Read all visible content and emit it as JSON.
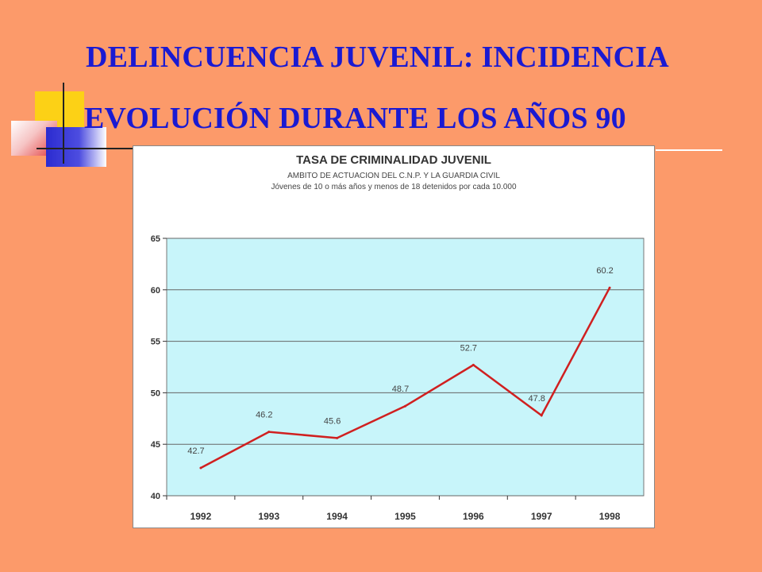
{
  "slide": {
    "title_line_1": "DELINCUENCIA JUVENIL: INCIDENCIA",
    "title_line_2": "EVOLUCIÓN DURANTE LOS AÑOS 90"
  },
  "colors": {
    "background": "#FC9A6A",
    "title": "#1a1ad2",
    "plot_area": "#C8F5FA",
    "line": "#D02020"
  },
  "chart_data": {
    "type": "line",
    "title": "TASA  DE CRIMINALIDAD JUVENIL",
    "subtitle_1": "AMBITO DE ACTUACION DEL C.N.P. Y LA GUARDIA CIVIL",
    "subtitle_2": "Jóvenes de 10 o más años y menos de 18 detenidos por cada 10.000",
    "categories": [
      "1992",
      "1993",
      "1994",
      "1995",
      "1996",
      "1997",
      "1998"
    ],
    "series": [
      {
        "values": [
          42.7,
          46.2,
          45.6,
          48.7,
          52.7,
          47.8,
          60.2
        ]
      }
    ],
    "data_labels": [
      "42.7",
      "46.2",
      "45.6",
      "48.7",
      "52.7",
      "47.8",
      "60.2"
    ],
    "ylim": [
      40,
      65
    ],
    "yticks": [
      "40",
      "45",
      "50",
      "55",
      "60",
      "65"
    ],
    "grid": true,
    "legend": "none"
  }
}
